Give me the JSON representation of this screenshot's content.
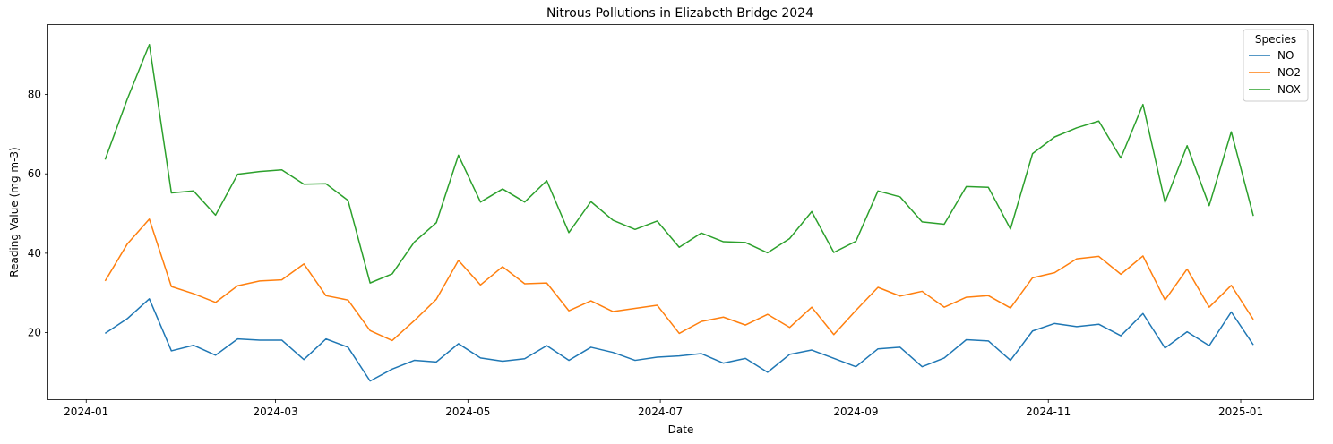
{
  "chart_data": {
    "type": "line",
    "title": "Nitrous Pollutions in Elizabeth Bridge 2024",
    "xlabel": "Date",
    "ylabel": "Reading Value (mg m-3)",
    "x_ticks": [
      "2024-01",
      "2024-03",
      "2024-05",
      "2024-07",
      "2024-09",
      "2024-11",
      "2025-01"
    ],
    "y_ticks": [
      20,
      40,
      60,
      80
    ],
    "xlim": [
      "2023-12-20",
      "2025-01-24"
    ],
    "ylim": [
      3.2,
      97.5
    ],
    "grid": false,
    "legend": {
      "title": "Species",
      "placement": "top-right"
    },
    "x": [
      "2024-01-07",
      "2024-01-14",
      "2024-01-21",
      "2024-01-28",
      "2024-02-04",
      "2024-02-11",
      "2024-02-18",
      "2024-02-25",
      "2024-03-03",
      "2024-03-10",
      "2024-03-17",
      "2024-03-24",
      "2024-03-31",
      "2024-04-07",
      "2024-04-14",
      "2024-04-21",
      "2024-04-28",
      "2024-05-05",
      "2024-05-12",
      "2024-05-19",
      "2024-05-26",
      "2024-06-02",
      "2024-06-09",
      "2024-06-16",
      "2024-06-23",
      "2024-06-30",
      "2024-07-07",
      "2024-07-14",
      "2024-07-21",
      "2024-07-28",
      "2024-08-04",
      "2024-08-11",
      "2024-08-18",
      "2024-08-25",
      "2024-09-01",
      "2024-09-08",
      "2024-09-15",
      "2024-09-22",
      "2024-09-29",
      "2024-10-06",
      "2024-10-13",
      "2024-10-20",
      "2024-10-27",
      "2024-11-03",
      "2024-11-10",
      "2024-11-17",
      "2024-11-24",
      "2024-12-01",
      "2024-12-08",
      "2024-12-15",
      "2024-12-22",
      "2024-12-29",
      "2025-01-05"
    ],
    "series": [
      {
        "name": "NO",
        "color": "#1f77b4",
        "values": [
          19.8,
          23.5,
          28.5,
          15.4,
          16.8,
          14.3,
          18.4,
          18.1,
          18.1,
          13.2,
          18.4,
          16.3,
          7.8,
          10.8,
          13.0,
          12.6,
          17.2,
          13.6,
          12.8,
          13.4,
          16.7,
          13.0,
          16.3,
          15.0,
          13.0,
          13.8,
          14.1,
          14.7,
          12.3,
          13.5,
          10.0,
          14.5,
          15.6,
          13.5,
          11.4,
          15.9,
          16.3,
          11.4,
          13.6,
          18.2,
          17.9,
          13.0,
          20.4,
          22.3,
          21.5,
          22.1,
          19.2,
          24.8,
          16.1,
          20.2,
          16.7,
          25.2,
          16.9
        ]
      },
      {
        "name": "NO2",
        "color": "#ff7f0e",
        "values": [
          33.0,
          42.3,
          48.6,
          31.6,
          29.8,
          27.6,
          31.8,
          33.0,
          33.3,
          37.3,
          29.3,
          28.2,
          20.5,
          18.0,
          23.0,
          28.4,
          38.2,
          32.0,
          36.6,
          32.3,
          32.5,
          25.5,
          28.0,
          25.3,
          26.1,
          26.9,
          19.8,
          22.8,
          23.9,
          21.9,
          24.6,
          21.3,
          26.4,
          19.5,
          25.6,
          31.4,
          29.2,
          30.4,
          26.4,
          28.9,
          29.3,
          26.2,
          33.8,
          35.1,
          38.6,
          39.2,
          34.7,
          39.3,
          28.2,
          36.0,
          26.4,
          31.9,
          23.3
        ]
      },
      {
        "name": "NOX",
        "color": "#2ca02c",
        "values": [
          63.6,
          78.8,
          92.6,
          55.2,
          55.7,
          49.6,
          59.9,
          60.6,
          61.0,
          57.4,
          57.5,
          53.3,
          32.5,
          34.8,
          42.8,
          47.7,
          64.7,
          52.9,
          56.2,
          52.9,
          58.3,
          45.2,
          53.0,
          48.3,
          46.0,
          48.1,
          41.5,
          45.1,
          42.9,
          42.7,
          40.1,
          43.7,
          50.5,
          40.2,
          43.0,
          55.7,
          54.2,
          47.9,
          47.3,
          56.8,
          56.6,
          46.1,
          65.1,
          69.3,
          71.6,
          73.3,
          64.0,
          77.5,
          52.8,
          67.1,
          52.0,
          70.6,
          49.4
        ]
      }
    ]
  }
}
